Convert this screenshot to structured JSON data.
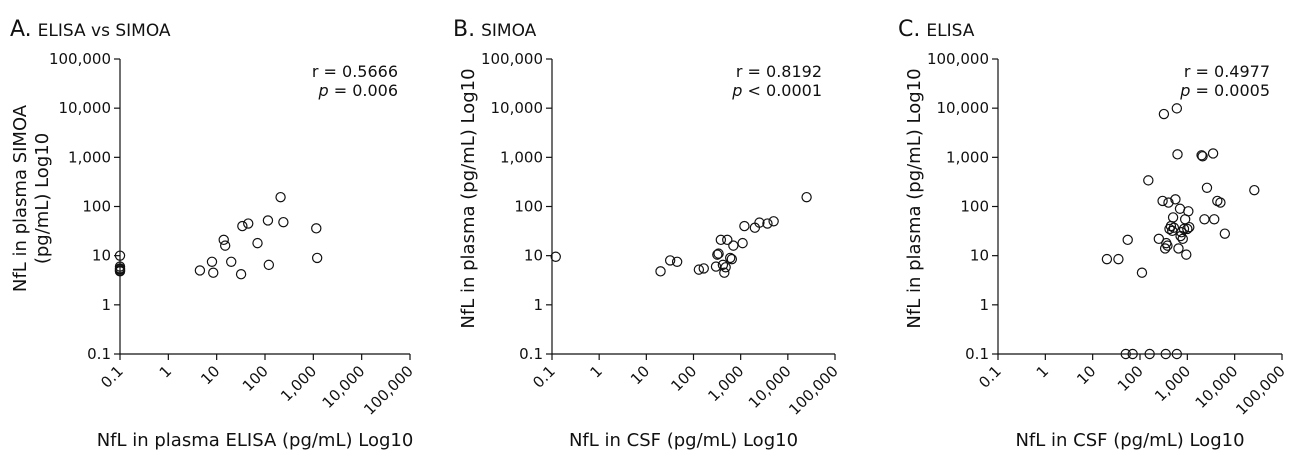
{
  "chart_data": [
    {
      "type": "scatter",
      "panel_letter": "A.",
      "title": "ELISA vs SIMOA",
      "xlabel": "NfL in plasma ELISA (pg/mL) Log10",
      "ylabel_line1": "NfL in plasma SIMOA",
      "ylabel_line2": "(pg/mL) Log10",
      "x_scale": "log",
      "y_scale": "log",
      "xlim": [
        0.1,
        100000
      ],
      "ylim": [
        0.1,
        100000
      ],
      "x_ticks": [
        "0.1",
        "1",
        "10",
        "100",
        "1,000",
        "10,000",
        "100,000"
      ],
      "y_ticks": [
        "0.1",
        "1",
        "10",
        "100",
        "1,000",
        "10,000",
        "100,000"
      ],
      "annotation": {
        "r": "r = 0.5666",
        "p_label": "p",
        "p_value": " = 0.006"
      },
      "points": [
        [
          0.1,
          10
        ],
        [
          0.1,
          6
        ],
        [
          0.1,
          5.5
        ],
        [
          0.1,
          5
        ],
        [
          0.1,
          5.3
        ],
        [
          0.1,
          4.8
        ],
        [
          4.5,
          5
        ],
        [
          8,
          7.5
        ],
        [
          8.5,
          4.5
        ],
        [
          14,
          21
        ],
        [
          15,
          16
        ],
        [
          20,
          7.5
        ],
        [
          32,
          4.2
        ],
        [
          34,
          40
        ],
        [
          45,
          45
        ],
        [
          70,
          18
        ],
        [
          115,
          52
        ],
        [
          120,
          6.5
        ],
        [
          210,
          155
        ],
        [
          240,
          48
        ],
        [
          1150,
          36
        ],
        [
          1200,
          9
        ]
      ]
    },
    {
      "type": "scatter",
      "panel_letter": "B.",
      "title": "SIMOA",
      "xlabel": "NfL in CSF (pg/mL) Log10",
      "ylabel_line1": "NfL in plasma (pg/mL) Log10",
      "ylabel_line2": "",
      "x_scale": "log",
      "y_scale": "log",
      "xlim": [
        0.1,
        100000
      ],
      "ylim": [
        0.1,
        100000
      ],
      "x_ticks": [
        "0.1",
        "1",
        "10",
        "100",
        "1,000",
        "10,000",
        "100,000"
      ],
      "y_ticks": [
        "0.1",
        "1",
        "10",
        "100",
        "1,000",
        "10,000",
        "100,000"
      ],
      "annotation": {
        "r": "r = 0.8192",
        "p_label": "p",
        "p_value": " < 0.0001"
      },
      "points": [
        [
          0.12,
          9.5
        ],
        [
          20,
          4.8
        ],
        [
          32,
          8
        ],
        [
          45,
          7.5
        ],
        [
          130,
          5.2
        ],
        [
          165,
          5.5
        ],
        [
          300,
          6
        ],
        [
          320,
          10.5
        ],
        [
          340,
          11
        ],
        [
          380,
          21
        ],
        [
          420,
          6.5
        ],
        [
          450,
          4.5
        ],
        [
          480,
          5.8
        ],
        [
          520,
          21
        ],
        [
          600,
          9
        ],
        [
          650,
          8.5
        ],
        [
          700,
          16
        ],
        [
          1100,
          18
        ],
        [
          1200,
          40
        ],
        [
          2000,
          37
        ],
        [
          2500,
          47
        ],
        [
          3700,
          45
        ],
        [
          5000,
          50
        ],
        [
          25000,
          155
        ]
      ]
    },
    {
      "type": "scatter",
      "panel_letter": "C.",
      "title": "ELISA",
      "xlabel": "NfL in CSF (pg/mL) Log10",
      "ylabel_line1": "NfL in plasma (pg/mL) Log10",
      "ylabel_line2": "",
      "x_scale": "log",
      "y_scale": "log",
      "xlim": [
        0.1,
        100000
      ],
      "ylim": [
        0.1,
        100000
      ],
      "x_ticks": [
        "0.1",
        "1",
        "10",
        "100",
        "1,000",
        "10,000",
        "100,000"
      ],
      "y_ticks": [
        "0.1",
        "1",
        "10",
        "100",
        "1,000",
        "10,000",
        "100,000"
      ],
      "annotation": {
        "r": "r = 0.4977",
        "p_label": "p",
        "p_value": " = 0.0005"
      },
      "points": [
        [
          20,
          8.5
        ],
        [
          35,
          8.5
        ],
        [
          55,
          21
        ],
        [
          110,
          4.5
        ],
        [
          150,
          340
        ],
        [
          50,
          0.1
        ],
        [
          70,
          0.1
        ],
        [
          160,
          0.1
        ],
        [
          350,
          0.1
        ],
        [
          600,
          0.1
        ],
        [
          250,
          22
        ],
        [
          300,
          130
        ],
        [
          320,
          7600
        ],
        [
          340,
          14
        ],
        [
          360,
          18
        ],
        [
          380,
          16
        ],
        [
          400,
          120
        ],
        [
          420,
          35
        ],
        [
          450,
          40
        ],
        [
          480,
          32
        ],
        [
          500,
          60
        ],
        [
          520,
          37
        ],
        [
          560,
          140
        ],
        [
          600,
          9900
        ],
        [
          620,
          1150
        ],
        [
          650,
          14
        ],
        [
          700,
          90
        ],
        [
          720,
          25
        ],
        [
          750,
          30
        ],
        [
          800,
          22
        ],
        [
          850,
          35
        ],
        [
          900,
          55
        ],
        [
          950,
          10.5
        ],
        [
          1000,
          35
        ],
        [
          1050,
          80
        ],
        [
          1100,
          38
        ],
        [
          2000,
          1100
        ],
        [
          2100,
          1050
        ],
        [
          2300,
          55
        ],
        [
          2600,
          240
        ],
        [
          3500,
          1200
        ],
        [
          3700,
          55
        ],
        [
          4300,
          130
        ],
        [
          5000,
          120
        ],
        [
          6200,
          28
        ],
        [
          26000,
          215
        ]
      ]
    }
  ]
}
